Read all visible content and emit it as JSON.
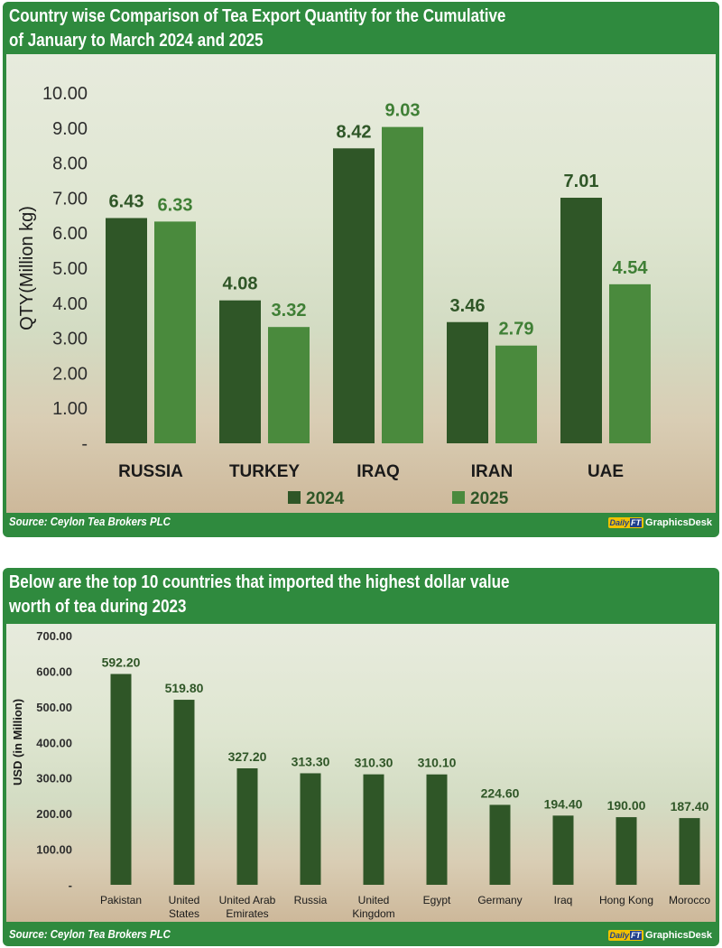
{
  "charts": [
    {
      "title_line1": "Country wise Comparison of Tea Export Quantity for the Cumulative",
      "title_line2": "of January to March 2024 and 2025",
      "source": "Source: Ceylon Tea Brokers PLC",
      "brand_logo_main": "Daily",
      "brand_logo_accent": "FT",
      "brand_name": "GraphicsDesk"
    },
    {
      "title_line1": "Below are the top 10 countries that imported the highest dollar value",
      "title_line2": "worth of tea during 2023",
      "source": "Source: Ceylon Tea Brokers PLC",
      "brand_logo_main": "Daily",
      "brand_logo_accent": "FT",
      "brand_name": "GraphicsDesk"
    }
  ],
  "colors": {
    "panel_green": "#2f8a3e",
    "series_2024": "#2f5627",
    "series_2025": "#4a8a3d",
    "bar_single": "#2f5627"
  },
  "chart_data": [
    {
      "type": "bar",
      "categories": [
        "RUSSIA",
        "TURKEY",
        "IRAQ",
        "IRAN",
        "UAE"
      ],
      "series": [
        {
          "name": "2024",
          "values": [
            6.43,
            4.08,
            8.42,
            3.46,
            7.01
          ]
        },
        {
          "name": "2025",
          "values": [
            6.33,
            3.32,
            9.03,
            2.79,
            4.54
          ]
        }
      ],
      "data_labels": [
        [
          "6.43",
          "4.08",
          "8.42",
          "3.46",
          "7.01"
        ],
        [
          "6.33",
          "3.32",
          "9.03",
          "2.79",
          "4.54"
        ]
      ],
      "ylabel": "QTY(Million kg)",
      "ylim": [
        0,
        10
      ],
      "yticks": [
        "-",
        "1.00",
        "2.00",
        "3.00",
        "4.00",
        "5.00",
        "6.00",
        "7.00",
        "8.00",
        "9.00",
        "10.00"
      ],
      "grid": false,
      "legend_position": "bottom"
    },
    {
      "type": "bar",
      "categories": [
        "Pakistan",
        "United States",
        "United Arab Emirates",
        "Russia",
        "United Kingdom",
        "Egypt",
        "Germany",
        "Iraq",
        "Hong Kong",
        "Morocco"
      ],
      "category_lines": [
        [
          "Pakistan"
        ],
        [
          "United",
          "States"
        ],
        [
          "United Arab",
          "Emirates"
        ],
        [
          "Russia"
        ],
        [
          "United",
          "Kingdom"
        ],
        [
          "Egypt"
        ],
        [
          "Germany"
        ],
        [
          "Iraq"
        ],
        [
          "Hong Kong"
        ],
        [
          "Morocco"
        ]
      ],
      "values": [
        592.2,
        519.8,
        327.2,
        313.3,
        310.3,
        310.1,
        224.6,
        194.4,
        190.0,
        187.4
      ],
      "data_labels": [
        "592.20",
        "519.80",
        "327.20",
        "313.30",
        "310.30",
        "310.10",
        "224.60",
        "194.40",
        "190.00",
        "187.40"
      ],
      "ylabel": "USD (in Million)",
      "ylim": [
        0,
        700
      ],
      "yticks": [
        "-",
        "100.00",
        "200.00",
        "300.00",
        "400.00",
        "500.00",
        "600.00",
        "700.00"
      ],
      "grid": false,
      "legend_position": "none"
    }
  ]
}
